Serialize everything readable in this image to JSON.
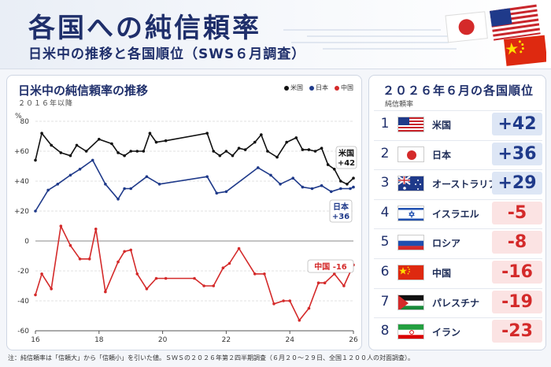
{
  "header": {
    "title": "各国への純信頼率",
    "subtitle": "日米中の推移と各国順位（SWS６月調査）"
  },
  "chart_panel": {
    "title": "日米中の純信頼率の推移",
    "subtitle": "２０１６年以降",
    "y_unit": "%",
    "legend": [
      "米国",
      "日本",
      "中国"
    ],
    "end_labels": {
      "us": "米国\n+42",
      "jp": "日本\n+36",
      "cn": "中国 -16"
    }
  },
  "chart_data": {
    "type": "line",
    "ylim": [
      -60,
      80
    ],
    "xlim": [
      16,
      26
    ],
    "yticks": [
      80,
      60,
      40,
      20,
      0,
      -20,
      -40,
      -60
    ],
    "ytick_labels": [
      "80",
      "+60",
      "+40",
      "+20",
      "0",
      "-20",
      "-40",
      "-60"
    ],
    "xticks": [
      "16",
      "18",
      "20",
      "22",
      "24",
      "26"
    ],
    "xtick_values": [
      16,
      18,
      20,
      22,
      24,
      26
    ],
    "series": [
      {
        "name": "米国",
        "color": "#111111",
        "x": [
          16,
          16.2,
          16.5,
          16.8,
          17.1,
          17.3,
          17.6,
          18.0,
          18.4,
          18.6,
          18.8,
          19.0,
          19.2,
          19.4,
          19.6,
          19.8,
          20.1,
          21.4,
          21.6,
          21.8,
          22.0,
          22.2,
          22.4,
          22.6,
          22.9,
          23.1,
          23.3,
          23.6,
          23.9,
          24.2,
          24.4,
          24.6,
          24.8,
          25.0,
          25.2,
          25.4,
          25.6,
          25.8,
          26.0
        ],
        "y": [
          54,
          72,
          64,
          59,
          57,
          64,
          60,
          68,
          65,
          59,
          57,
          60,
          60,
          60,
          72,
          66,
          67,
          72,
          60,
          57,
          60,
          57,
          62,
          61,
          66,
          71,
          60,
          56,
          66,
          69,
          61,
          61,
          60,
          62,
          51,
          48,
          40,
          38,
          42
        ]
      },
      {
        "name": "日本",
        "color": "#1f3a8a",
        "x": [
          16,
          16.4,
          16.7,
          17.1,
          17.4,
          17.8,
          18.2,
          18.6,
          18.8,
          19.0,
          19.5,
          19.9,
          21.4,
          21.7,
          22.0,
          23.0,
          23.4,
          23.7,
          24.1,
          24.4,
          24.7,
          25.0,
          25.3,
          25.6,
          25.9,
          26.0
        ],
        "y": [
          20,
          34,
          38,
          44,
          48,
          54,
          38,
          28,
          35,
          35,
          43,
          38,
          43,
          32,
          33,
          49,
          44,
          38,
          42,
          36,
          35,
          37,
          33,
          35,
          35,
          36
        ]
      },
      {
        "name": "中国",
        "color": "#d42a2a",
        "x": [
          16,
          16.2,
          16.5,
          16.8,
          17.1,
          17.4,
          17.7,
          17.9,
          18.2,
          18.6,
          18.8,
          19.0,
          19.2,
          19.5,
          19.8,
          20.1,
          21.0,
          21.3,
          21.6,
          21.9,
          22.1,
          22.4,
          22.9,
          23.2,
          23.5,
          23.8,
          24.0,
          24.3,
          24.6,
          24.9,
          25.1,
          25.4,
          25.7,
          26.0
        ],
        "y": [
          -36,
          -22,
          -32,
          10,
          -3,
          -12,
          -12,
          8,
          -34,
          -14,
          -7,
          -6,
          -22,
          -32,
          -25,
          -25,
          -25,
          -30,
          -30,
          -18,
          -15,
          -5,
          -22,
          -22,
          -42,
          -40,
          -40,
          -53,
          -45,
          -28,
          -28,
          -22,
          -30,
          -16
        ]
      }
    ]
  },
  "ranking": {
    "title": "２０２６年６月の各国順位",
    "subtitle": "純信頼率",
    "rows": [
      {
        "rank": "1",
        "flag": "us-flag",
        "name": "米国",
        "value": "+42",
        "sign": "pos"
      },
      {
        "rank": "2",
        "flag": "japan-flag",
        "name": "日本",
        "value": "+36",
        "sign": "pos"
      },
      {
        "rank": "3",
        "flag": "australia-flag",
        "name": "オーストラリア",
        "value": "+29",
        "sign": "pos"
      },
      {
        "rank": "4",
        "flag": "israel-flag",
        "name": "イスラエル",
        "value": "-5",
        "sign": "neg"
      },
      {
        "rank": "5",
        "flag": "russia-flag",
        "name": "ロシア",
        "value": "-8",
        "sign": "neg"
      },
      {
        "rank": "6",
        "flag": "china-flag",
        "name": "中国",
        "value": "-16",
        "sign": "neg"
      },
      {
        "rank": "7",
        "flag": "palestine-flag",
        "name": "パレスチナ",
        "value": "-19",
        "sign": "neg"
      },
      {
        "rank": "8",
        "flag": "iran-flag",
        "name": "イラン",
        "value": "-23",
        "sign": "neg"
      }
    ]
  },
  "footnote": "注：純信頼率は「信頼大」から「信頼小」を引いた値。ＳＷＳの２０２６年第２四半期調査（６月２０～２９日、全国１２００人の対面調査）。"
}
